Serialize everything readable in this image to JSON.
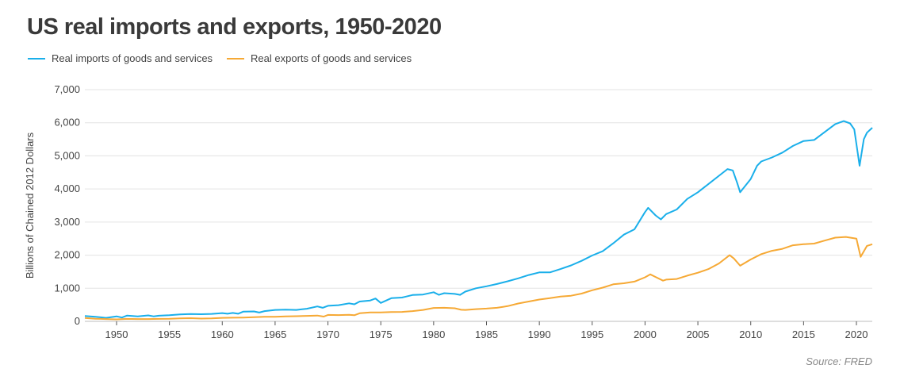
{
  "chart_data": {
    "type": "line",
    "title": "US real imports and exports, 1950-2020",
    "xlabel": "",
    "ylabel": "Billions of Chained 2012 Dollars",
    "xlim": [
      1947,
      2021.5
    ],
    "ylim": [
      0,
      7000
    ],
    "y_ticks": [
      0,
      1000,
      2000,
      3000,
      4000,
      5000,
      6000,
      7000
    ],
    "y_tick_labels": [
      "0",
      "1,000",
      "2,000",
      "3,000",
      "4,000",
      "5,000",
      "6,000",
      "7,000"
    ],
    "x_ticks": [
      1950,
      1955,
      1960,
      1965,
      1970,
      1975,
      1980,
      1985,
      1990,
      1995,
      2000,
      2005,
      2010,
      2015,
      2020
    ],
    "x_tick_labels": [
      "1950",
      "1955",
      "1960",
      "1965",
      "1970",
      "1975",
      "1980",
      "1985",
      "1990",
      "1995",
      "2000",
      "2005",
      "2010",
      "2015",
      "2020"
    ],
    "grid": "horizontal",
    "legend_position": "top-left",
    "source": "Source: FRED",
    "series": [
      {
        "name": "Real imports of goods and services",
        "color": "#1AAFEA",
        "points": [
          [
            1947,
            160
          ],
          [
            1948,
            140
          ],
          [
            1949,
            105
          ],
          [
            1950,
            150
          ],
          [
            1950.5,
            115
          ],
          [
            1951,
            175
          ],
          [
            1952,
            150
          ],
          [
            1953,
            180
          ],
          [
            1953.5,
            150
          ],
          [
            1954,
            170
          ],
          [
            1955,
            185
          ],
          [
            1956,
            210
          ],
          [
            1957,
            220
          ],
          [
            1958,
            215
          ],
          [
            1959,
            225
          ],
          [
            1960,
            250
          ],
          [
            1960.5,
            230
          ],
          [
            1961,
            255
          ],
          [
            1961.5,
            230
          ],
          [
            1962,
            295
          ],
          [
            1963,
            300
          ],
          [
            1963.5,
            265
          ],
          [
            1964,
            310
          ],
          [
            1965,
            345
          ],
          [
            1966,
            355
          ],
          [
            1967,
            345
          ],
          [
            1968,
            380
          ],
          [
            1969,
            450
          ],
          [
            1969.5,
            410
          ],
          [
            1970,
            470
          ],
          [
            1971,
            490
          ],
          [
            1972,
            545
          ],
          [
            1972.5,
            515
          ],
          [
            1973,
            600
          ],
          [
            1974,
            630
          ],
          [
            1974.5,
            690
          ],
          [
            1975,
            555
          ],
          [
            1976,
            700
          ],
          [
            1977,
            720
          ],
          [
            1978,
            795
          ],
          [
            1979,
            810
          ],
          [
            1980,
            880
          ],
          [
            1980.5,
            800
          ],
          [
            1981,
            850
          ],
          [
            1982,
            830
          ],
          [
            1982.5,
            800
          ],
          [
            1983,
            900
          ],
          [
            1984,
            1000
          ],
          [
            1985,
            1060
          ],
          [
            1986,
            1130
          ],
          [
            1987,
            1210
          ],
          [
            1988,
            1300
          ],
          [
            1989,
            1400
          ],
          [
            1990,
            1480
          ],
          [
            1991,
            1480
          ],
          [
            1992,
            1580
          ],
          [
            1993,
            1690
          ],
          [
            1994,
            1830
          ],
          [
            1995,
            1990
          ],
          [
            1996,
            2120
          ],
          [
            1997,
            2360
          ],
          [
            1998,
            2620
          ],
          [
            1999,
            2780
          ],
          [
            2000,
            3300
          ],
          [
            2000.3,
            3430
          ],
          [
            2001,
            3200
          ],
          [
            2001.5,
            3080
          ],
          [
            2002,
            3240
          ],
          [
            2003,
            3380
          ],
          [
            2004,
            3700
          ],
          [
            2005,
            3900
          ],
          [
            2006,
            4150
          ],
          [
            2007,
            4400
          ],
          [
            2007.8,
            4600
          ],
          [
            2008.3,
            4560
          ],
          [
            2008.7,
            4200
          ],
          [
            2009,
            3900
          ],
          [
            2010,
            4300
          ],
          [
            2010.6,
            4700
          ],
          [
            2011,
            4830
          ],
          [
            2012,
            4950
          ],
          [
            2013,
            5100
          ],
          [
            2014,
            5300
          ],
          [
            2015,
            5450
          ],
          [
            2016,
            5480
          ],
          [
            2017,
            5720
          ],
          [
            2018,
            5960
          ],
          [
            2018.8,
            6050
          ],
          [
            2019.4,
            5980
          ],
          [
            2019.8,
            5800
          ],
          [
            2020.3,
            4700
          ],
          [
            2020.7,
            5500
          ],
          [
            2021,
            5700
          ],
          [
            2021.5,
            5850
          ]
        ]
      },
      {
        "name": "Real exports of goods and services",
        "color": "#F6A935",
        "points": [
          [
            1947,
            100
          ],
          [
            1948,
            80
          ],
          [
            1949,
            70
          ],
          [
            1950,
            60
          ],
          [
            1951,
            75
          ],
          [
            1952,
            70
          ],
          [
            1953,
            70
          ],
          [
            1954,
            75
          ],
          [
            1955,
            80
          ],
          [
            1956,
            90
          ],
          [
            1957,
            95
          ],
          [
            1958,
            85
          ],
          [
            1959,
            90
          ],
          [
            1960,
            105
          ],
          [
            1961,
            110
          ],
          [
            1962,
            115
          ],
          [
            1963,
            125
          ],
          [
            1964,
            140
          ],
          [
            1965,
            140
          ],
          [
            1966,
            150
          ],
          [
            1967,
            155
          ],
          [
            1968,
            165
          ],
          [
            1969,
            175
          ],
          [
            1969.6,
            145
          ],
          [
            1970,
            195
          ],
          [
            1971,
            190
          ],
          [
            1972,
            200
          ],
          [
            1972.5,
            185
          ],
          [
            1973,
            245
          ],
          [
            1974,
            270
          ],
          [
            1975,
            270
          ],
          [
            1976,
            280
          ],
          [
            1977,
            285
          ],
          [
            1978,
            310
          ],
          [
            1979,
            345
          ],
          [
            1980,
            405
          ],
          [
            1981,
            410
          ],
          [
            1982,
            395
          ],
          [
            1982.6,
            350
          ],
          [
            1983,
            345
          ],
          [
            1984,
            370
          ],
          [
            1985,
            385
          ],
          [
            1986,
            410
          ],
          [
            1987,
            460
          ],
          [
            1988,
            540
          ],
          [
            1989,
            600
          ],
          [
            1990,
            660
          ],
          [
            1991,
            700
          ],
          [
            1992,
            750
          ],
          [
            1993,
            775
          ],
          [
            1994,
            840
          ],
          [
            1995,
            940
          ],
          [
            1996,
            1020
          ],
          [
            1997,
            1120
          ],
          [
            1998,
            1150
          ],
          [
            1999,
            1200
          ],
          [
            2000,
            1330
          ],
          [
            2000.5,
            1420
          ],
          [
            2001,
            1340
          ],
          [
            2001.7,
            1230
          ],
          [
            2002,
            1260
          ],
          [
            2003,
            1280
          ],
          [
            2004,
            1380
          ],
          [
            2005,
            1470
          ],
          [
            2006,
            1580
          ],
          [
            2007,
            1750
          ],
          [
            2008,
            2000
          ],
          [
            2008.4,
            1900
          ],
          [
            2009,
            1680
          ],
          [
            2010,
            1870
          ],
          [
            2011,
            2030
          ],
          [
            2012,
            2130
          ],
          [
            2013,
            2190
          ],
          [
            2014,
            2300
          ],
          [
            2015,
            2330
          ],
          [
            2016,
            2350
          ],
          [
            2017,
            2440
          ],
          [
            2018,
            2530
          ],
          [
            2019,
            2550
          ],
          [
            2020,
            2500
          ],
          [
            2020.4,
            1950
          ],
          [
            2021,
            2280
          ],
          [
            2021.5,
            2330
          ]
        ]
      }
    ]
  }
}
